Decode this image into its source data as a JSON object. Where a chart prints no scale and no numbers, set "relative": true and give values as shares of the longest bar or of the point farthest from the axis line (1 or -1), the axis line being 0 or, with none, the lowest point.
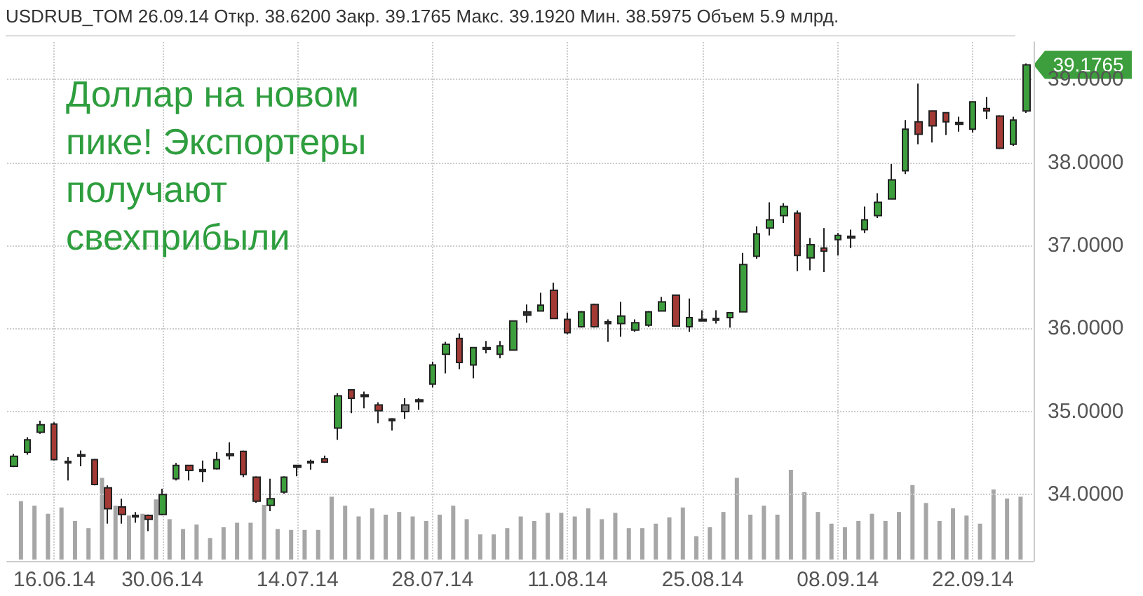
{
  "chart_data": [
    {
      "type": "candlestick",
      "title": "USDRUB_TOM 26.09.14 Откр. 38.6200 Закр. 39.1765 Макс. 39.1920 Мин. 38.5975 Объем 5.9 млрд.",
      "annotations": [
        "Доллар на новом пике! Экспортеры получают свехприбыли",
        "39.1765"
      ],
      "categories": [
        null,
        null,
        null,
        "16.06.14",
        null,
        null,
        null,
        null,
        null,
        null,
        null,
        "30.06.14",
        null,
        null,
        null,
        null,
        null,
        null,
        null,
        null,
        null,
        "14.07.14",
        null,
        null,
        null,
        null,
        null,
        null,
        null,
        null,
        null,
        "28.07.14",
        null,
        null,
        null,
        null,
        null,
        null,
        null,
        null,
        null,
        "11.08.14",
        null,
        null,
        null,
        null,
        null,
        null,
        null,
        null,
        null,
        "25.08.14",
        null,
        null,
        null,
        null,
        null,
        null,
        null,
        null,
        null,
        "08.09.14",
        null,
        null,
        null,
        null,
        null,
        null,
        null,
        null,
        null,
        "22.09.14",
        null,
        null,
        null,
        null
      ],
      "ohlc": [
        [
          34.34,
          34.49,
          34.33,
          34.46
        ],
        [
          34.51,
          34.69,
          34.48,
          34.66
        ],
        [
          34.75,
          34.89,
          34.73,
          34.84
        ],
        [
          34.85,
          34.87,
          34.41,
          34.42
        ],
        [
          34.4,
          34.45,
          34.17,
          34.38
        ],
        [
          34.48,
          34.53,
          34.34,
          34.46
        ],
        [
          34.42,
          34.43,
          34.11,
          34.12
        ],
        [
          34.08,
          34.11,
          33.65,
          33.83
        ],
        [
          33.85,
          33.95,
          33.65,
          33.76
        ],
        [
          33.75,
          33.79,
          33.66,
          33.73
        ],
        [
          33.75,
          33.76,
          33.56,
          33.7
        ],
        [
          33.76,
          34.07,
          33.75,
          34.0
        ],
        [
          34.19,
          34.38,
          34.17,
          34.35
        ],
        [
          34.35,
          34.36,
          34.17,
          34.29
        ],
        [
          34.3,
          34.41,
          34.15,
          34.28
        ],
        [
          34.31,
          34.51,
          34.3,
          34.42
        ],
        [
          34.49,
          34.63,
          34.42,
          34.47
        ],
        [
          34.52,
          34.53,
          34.21,
          34.24
        ],
        [
          34.21,
          34.22,
          33.9,
          33.92
        ],
        [
          33.87,
          34.19,
          33.8,
          33.95
        ],
        [
          34.03,
          34.22,
          34.01,
          34.21
        ],
        [
          34.35,
          34.36,
          34.22,
          34.33
        ],
        [
          34.4,
          34.42,
          34.3,
          34.38
        ],
        [
          34.43,
          34.47,
          34.38,
          34.39
        ],
        [
          34.8,
          35.22,
          34.66,
          35.19
        ],
        [
          35.26,
          35.27,
          34.98,
          35.16
        ],
        [
          35.2,
          35.24,
          35.04,
          35.18
        ],
        [
          35.08,
          35.11,
          34.86,
          35.01
        ],
        [
          34.91,
          34.92,
          34.77,
          34.89
        ],
        [
          35.08,
          35.16,
          34.91,
          35.0
        ],
        [
          35.14,
          35.16,
          35.02,
          35.12
        ],
        [
          35.33,
          35.6,
          35.29,
          35.56
        ],
        [
          35.69,
          35.84,
          35.46,
          35.81
        ],
        [
          35.88,
          35.94,
          35.51,
          35.59
        ],
        [
          35.56,
          35.77,
          35.4,
          35.77
        ],
        [
          35.77,
          35.85,
          35.7,
          35.75
        ],
        [
          35.69,
          35.85,
          35.64,
          35.79
        ],
        [
          35.74,
          36.1,
          35.74,
          36.09
        ],
        [
          36.2,
          36.29,
          36.07,
          36.16
        ],
        [
          36.21,
          36.43,
          36.21,
          36.28
        ],
        [
          36.46,
          36.55,
          36.12,
          36.12
        ],
        [
          36.11,
          36.19,
          35.93,
          35.95
        ],
        [
          36.02,
          36.21,
          36.01,
          36.2
        ],
        [
          36.29,
          36.3,
          36.01,
          36.02
        ],
        [
          36.08,
          36.11,
          35.84,
          36.06
        ],
        [
          36.06,
          36.32,
          35.9,
          36.15
        ],
        [
          35.98,
          36.11,
          35.96,
          36.07
        ],
        [
          36.04,
          36.21,
          36.02,
          36.2
        ],
        [
          36.21,
          36.38,
          36.21,
          36.32
        ],
        [
          36.4,
          36.41,
          36.02,
          36.03
        ],
        [
          36.02,
          36.36,
          35.96,
          36.13
        ],
        [
          36.11,
          36.22,
          36.09,
          36.09
        ],
        [
          36.12,
          36.22,
          36.06,
          36.1
        ],
        [
          36.13,
          36.19,
          36.01,
          36.19
        ],
        [
          36.2,
          36.91,
          36.2,
          36.77
        ],
        [
          36.87,
          37.23,
          36.84,
          37.14
        ],
        [
          37.21,
          37.52,
          37.12,
          37.31
        ],
        [
          37.36,
          37.51,
          37.27,
          37.47
        ],
        [
          37.39,
          37.42,
          36.69,
          36.88
        ],
        [
          36.85,
          37.09,
          36.7,
          37.01
        ],
        [
          36.97,
          37.21,
          36.68,
          36.93
        ],
        [
          37.07,
          37.15,
          36.88,
          37.12
        ],
        [
          37.11,
          37.19,
          36.97,
          37.09
        ],
        [
          37.19,
          37.47,
          37.15,
          37.31
        ],
        [
          37.36,
          37.63,
          37.33,
          37.52
        ],
        [
          37.56,
          37.98,
          37.56,
          37.79
        ],
        [
          37.9,
          38.51,
          37.86,
          38.4
        ],
        [
          38.49,
          38.95,
          38.22,
          38.34
        ],
        [
          38.62,
          38.62,
          38.24,
          38.44
        ],
        [
          38.6,
          38.6,
          38.33,
          38.49
        ],
        [
          38.48,
          38.55,
          38.37,
          38.46
        ],
        [
          38.4,
          38.73,
          38.36,
          38.73
        ],
        [
          38.65,
          38.79,
          38.52,
          38.62
        ],
        [
          38.56,
          38.57,
          38.16,
          38.17
        ],
        [
          38.22,
          38.55,
          38.2,
          38.51
        ],
        [
          38.62,
          39.192,
          38.5975,
          39.1765
        ]
      ],
      "colors": [
        "#3c9e3c",
        "#3c9e3c",
        "#3c9e3c",
        "#a33a35",
        "#333333",
        "#333333",
        "#a33a35",
        "#a33a35",
        "#a33a35",
        "#333333",
        "#a33a35",
        "#3c9e3c",
        "#3c9e3c",
        "#a33a35",
        "#333333",
        "#3c9e3c",
        "#333333",
        "#a33a35",
        "#a33a35",
        "#3c9e3c",
        "#3c9e3c",
        "#333333",
        "#333333",
        "#a33a35",
        "#3c9e3c",
        "#a33a35",
        "#333333",
        "#a33a35",
        "#333333",
        "#808080",
        "#333333",
        "#3c9e3c",
        "#3c9e3c",
        "#a33a35",
        "#3c9e3c",
        "#333333",
        "#3c9e3c",
        "#3c9e3c",
        "#333333",
        "#3c9e3c",
        "#a33a35",
        "#a33a35",
        "#3c9e3c",
        "#a33a35",
        "#333333",
        "#3c9e3c",
        "#3c9e3c",
        "#3c9e3c",
        "#3c9e3c",
        "#a33a35",
        "#3c9e3c",
        "#333333",
        "#333333",
        "#3c9e3c",
        "#3c9e3c",
        "#3c9e3c",
        "#3c9e3c",
        "#3c9e3c",
        "#a33a35",
        "#3c9e3c",
        "#a33a35",
        "#3c9e3c",
        "#333333",
        "#3c9e3c",
        "#3c9e3c",
        "#3c9e3c",
        "#3c9e3c",
        "#a33a35",
        "#a33a35",
        "#a33a35",
        "#333333",
        "#3c9e3c",
        "#a33a35",
        "#a33a35",
        "#3c9e3c",
        "#3c9e3c"
      ],
      "ylim": [
        33.2,
        39.45
      ],
      "yticks": [
        {
          "value": 34,
          "label": "34.0000"
        },
        {
          "value": 35,
          "label": "35.0000"
        },
        {
          "value": 36,
          "label": "36.0000"
        },
        {
          "value": 37,
          "label": "37.0000"
        },
        {
          "value": 38,
          "label": "38.0000"
        },
        {
          "value": 39,
          "label": "39.0000"
        }
      ],
      "grid": true
    },
    {
      "type": "bar",
      "relative": true,
      "color": "#a6a6a6",
      "categories": [
        null,
        null,
        null,
        null,
        null,
        null,
        null,
        null,
        null,
        null,
        null,
        null,
        null,
        null,
        null,
        null,
        null,
        null,
        null,
        null,
        null,
        null,
        null,
        null,
        null,
        null,
        null,
        null,
        null,
        null,
        null,
        null,
        null,
        null,
        null,
        null,
        null,
        null,
        null,
        null,
        null,
        null,
        null,
        null,
        null,
        null,
        null,
        null,
        null,
        null,
        null,
        null,
        null,
        null,
        null,
        null,
        null,
        null,
        null,
        null,
        null,
        null,
        null,
        null,
        null,
        null,
        null,
        null,
        null,
        null,
        null,
        null,
        null,
        null,
        null,
        null
      ],
      "values": [
        null,
        0.65,
        0.6,
        0.51,
        0.58,
        0.43,
        0.35,
        0.91,
        0.6,
        0.49,
        0.51,
        0.67,
        0.45,
        0.34,
        0.39,
        0.24,
        0.36,
        0.41,
        0.41,
        0.61,
        0.34,
        0.33,
        0.33,
        0.33,
        0.7,
        0.6,
        0.48,
        0.57,
        0.5,
        0.53,
        0.48,
        0.43,
        0.5,
        0.6,
        0.45,
        0.28,
        0.28,
        0.35,
        0.48,
        0.43,
        0.52,
        0.52,
        0.48,
        0.57,
        0.45,
        0.52,
        0.35,
        0.35,
        0.4,
        0.47,
        0.58,
        0.26,
        0.36,
        0.53,
        0.91,
        0.5,
        0.6,
        0.5,
        1,
        0.75,
        0.53,
        0.4,
        0.36,
        0.43,
        0.51,
        0.43,
        0.53,
        0.83,
        0.63,
        0.43,
        0.57,
        0.49,
        0.4,
        0.78,
        0.68,
        0.7
      ]
    }
  ]
}
